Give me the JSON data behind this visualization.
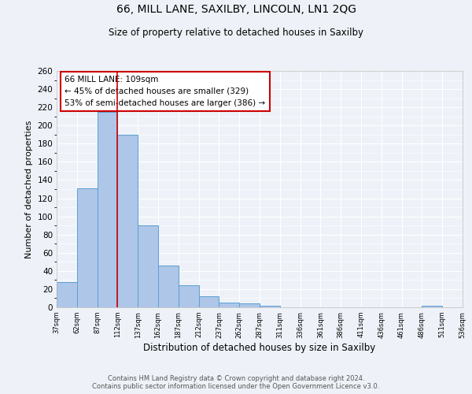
{
  "title1": "66, MILL LANE, SAXILBY, LINCOLN, LN1 2QG",
  "title2": "Size of property relative to detached houses in Saxilby",
  "xlabel": "Distribution of detached houses by size in Saxilby",
  "ylabel": "Number of detached properties",
  "bar_values": [
    28,
    131,
    215,
    190,
    90,
    46,
    24,
    12,
    5,
    4,
    2,
    0,
    0,
    0,
    0,
    0,
    0,
    0,
    2,
    0
  ],
  "categories": [
    "37sqm",
    "62sqm",
    "87sqm",
    "112sqm",
    "137sqm",
    "162sqm",
    "187sqm",
    "212sqm",
    "237sqm",
    "262sqm",
    "287sqm",
    "311sqm",
    "336sqm",
    "361sqm",
    "386sqm",
    "411sqm",
    "436sqm",
    "461sqm",
    "486sqm",
    "511sqm",
    "536sqm"
  ],
  "bar_color": "#aec6e8",
  "bar_edge_color": "#5a9fd4",
  "vline_color": "#cc0000",
  "annotation_title": "66 MILL LANE: 109sqm",
  "annotation_line1": "← 45% of detached houses are smaller (329)",
  "annotation_line2": "53% of semi-detached houses are larger (386) →",
  "annotation_box_color": "#ffffff",
  "annotation_box_edge": "#cc0000",
  "ylim": [
    0,
    260
  ],
  "yticks": [
    0,
    20,
    40,
    60,
    80,
    100,
    120,
    140,
    160,
    180,
    200,
    220,
    240,
    260
  ],
  "footnote": "Contains HM Land Registry data © Crown copyright and database right 2024.\nContains public sector information licensed under the Open Government Licence v3.0.",
  "background_color": "#eef2f8",
  "grid_color": "#ffffff"
}
